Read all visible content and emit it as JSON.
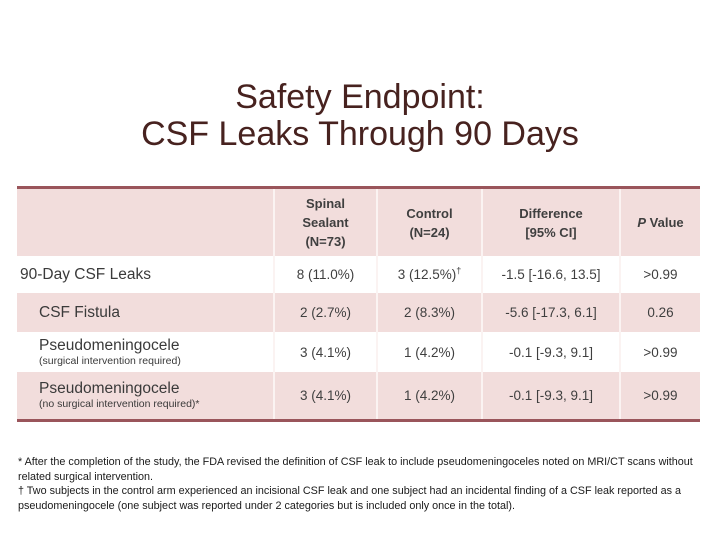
{
  "title": {
    "line1": "Safety Endpoint:",
    "line2": "CSF Leaks Through 90 Days"
  },
  "colors": {
    "title_dark_red": "#47221f",
    "table_border_maroon": "#9a555b",
    "band_pink": "#f2dddc",
    "header_text": "#3f3f3f"
  },
  "table": {
    "col_headers": {
      "row_label": "",
      "spinal": "Spinal\nSealant\n(N=73)",
      "control": "Control\n(N=24)",
      "difference": "Difference\n[95% CI]",
      "p_italic": "P",
      "p_rest": " Value"
    },
    "rows": [
      {
        "label": "90-Day CSF Leaks",
        "sublabel": "",
        "spinal": "8 (11.0%)",
        "control": "3 (12.5%)",
        "control_sup": "†",
        "difference": "-1.5 [-16.6, 13.5]",
        "p": ">0.99"
      },
      {
        "label": "CSF Fistula",
        "sublabel": "",
        "spinal": "2 (2.7%)",
        "control": "2 (8.3%)",
        "control_sup": "",
        "difference": "-5.6 [-17.3, 6.1]",
        "p": "0.26"
      },
      {
        "label": "Pseudomeningocele",
        "sublabel": "(surgical intervention required)",
        "spinal": "3 (4.1%)",
        "control": "1 (4.2%)",
        "control_sup": "",
        "difference": "-0.1 [-9.3, 9.1]",
        "p": ">0.99"
      },
      {
        "label": "Pseudomeningocele",
        "sublabel": "(no surgical intervention required)*",
        "spinal": "3 (4.1%)",
        "control": "1 (4.2%)",
        "control_sup": "",
        "difference": "-0.1 [-9.3, 9.1]",
        "p": ">0.99"
      }
    ]
  },
  "footnotes": [
    "* After the completion of the study, the FDA revised the definition of CSF leak to include pseudomeningoceles noted on MRI/CT scans without related surgical intervention.",
    "†  Two subjects in the control arm experienced an incisional CSF leak and one subject had an incidental finding of a CSF leak reported as a pseudomeningocele (one subject was reported under 2 categories but is included only once in the total)."
  ]
}
